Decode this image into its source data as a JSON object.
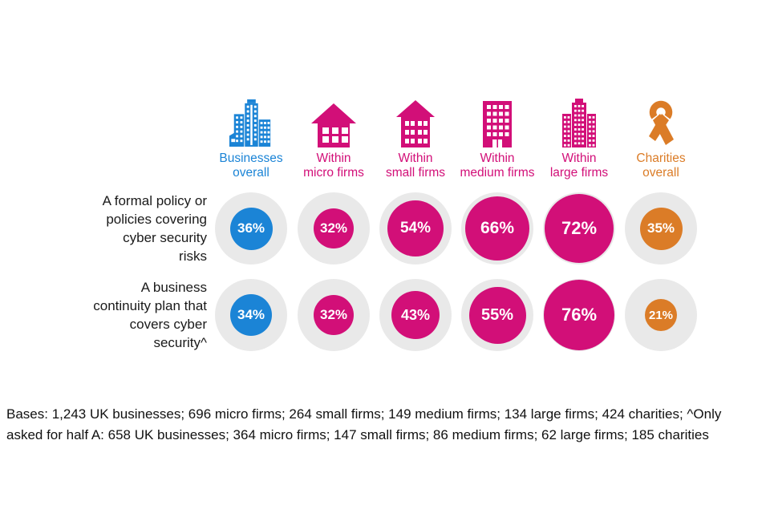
{
  "colors": {
    "blue": "#1b84d6",
    "pink": "#d20f78",
    "orange": "#db7c27",
    "circle_bg": "#e9e9e9",
    "text": "#1a1a1a"
  },
  "columns": [
    {
      "label": "Businesses overall",
      "lines": [
        "Businesses",
        "overall"
      ],
      "color": "blue",
      "icon": "city-buildings-icon"
    },
    {
      "label": "Within micro firms",
      "lines": [
        "Within",
        "micro firms"
      ],
      "color": "pink",
      "icon": "house-icon"
    },
    {
      "label": "Within small firms",
      "lines": [
        "Within",
        "small firms"
      ],
      "color": "pink",
      "icon": "small-building-icon"
    },
    {
      "label": "Within medium firms",
      "lines": [
        "Within",
        "medium firms"
      ],
      "color": "pink",
      "icon": "office-building-icon"
    },
    {
      "label": "Within large firms",
      "lines": [
        "Within",
        "large firms"
      ],
      "color": "pink",
      "icon": "skyscraper-icon"
    },
    {
      "label": "Charities overall",
      "lines": [
        "Charities",
        "overall"
      ],
      "color": "orange",
      "icon": "ribbon-icon"
    }
  ],
  "rows": [
    {
      "label": "A formal policy or policies covering cyber security risks",
      "label_lines": [
        "A formal policy or",
        "policies covering",
        "cyber security",
        "risks"
      ],
      "values": [
        "36%",
        "32%",
        "54%",
        "66%",
        "72%",
        "35%"
      ]
    },
    {
      "label": "A business continuity plan that covers cyber security^",
      "label_lines": [
        "A business",
        "continuity plan that",
        "covers cyber",
        "security^"
      ],
      "values": [
        "34%",
        "32%",
        "43%",
        "55%",
        "76%",
        "21%"
      ]
    }
  ],
  "footer": {
    "lines": [
      "Bases: 1,243 UK businesses; 696 micro firms; 264 small firms; 149 medium firms; 134 large firms; 424 charities; ^Only",
      "asked for half A: 658 UK businesses; 364 micro firms; 147 small firms; 86 medium firms; 62 large firms; 185 charities"
    ]
  },
  "chart_data": {
    "type": "bubble",
    "unit": "%",
    "categories": [
      "Businesses overall",
      "Within micro firms",
      "Within small firms",
      "Within medium firms",
      "Within large firms",
      "Charities overall"
    ],
    "series": [
      {
        "name": "A formal policy or policies covering cyber security risks",
        "values": [
          36,
          32,
          54,
          66,
          72,
          35
        ]
      },
      {
        "name": "A business continuity plan that covers cyber security^",
        "values": [
          34,
          32,
          43,
          55,
          76,
          21
        ]
      }
    ],
    "series_colors": [
      "#1b84d6",
      "#d20f78",
      "#d20f78",
      "#d20f78",
      "#d20f78",
      "#db7c27"
    ],
    "layout": "grid of bubbles; bubble size scales with value; grey background circle represents 100%"
  }
}
